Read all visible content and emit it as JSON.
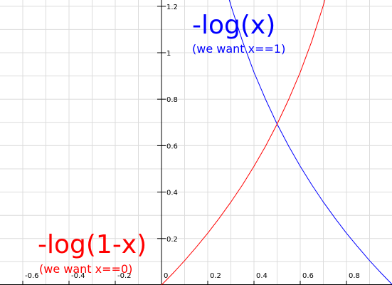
{
  "chart_data": {
    "type": "line",
    "xlim": [
      -0.7,
      1.0
    ],
    "ylim": [
      0,
      1.25
    ],
    "grid": true,
    "x_ticks": [
      -0.6,
      -0.4,
      -0.2,
      0,
      0.2,
      0.4,
      0.6,
      0.8
    ],
    "y_ticks": [
      0.2,
      0.4,
      0.6,
      0.8,
      1,
      1.2
    ],
    "x_tick_labels": [
      "-0.6",
      "-0.4",
      "-0.2",
      "0",
      "0.2",
      "0.4",
      "0.6",
      "0.8"
    ],
    "y_tick_labels": [
      "0.2",
      "0.4",
      "0.6",
      "0.8",
      "1",
      "1.2"
    ],
    "series": [
      {
        "name": "-log(x)",
        "color": "#0000ff",
        "x": [
          0.28,
          0.3,
          0.35,
          0.4,
          0.45,
          0.5,
          0.55,
          0.6,
          0.65,
          0.7,
          0.75,
          0.8,
          0.85,
          0.9,
          0.95,
          1.0
        ],
        "y": [
          1.273,
          1.204,
          1.05,
          0.916,
          0.799,
          0.693,
          0.598,
          0.511,
          0.431,
          0.357,
          0.288,
          0.223,
          0.163,
          0.105,
          0.051,
          0
        ]
      },
      {
        "name": "-log(1-x)",
        "color": "#ff0000",
        "x": [
          0,
          0.05,
          0.1,
          0.15,
          0.2,
          0.25,
          0.3,
          0.35,
          0.4,
          0.45,
          0.5,
          0.55,
          0.6,
          0.65,
          0.7,
          0.72
        ],
        "y": [
          0,
          0.051,
          0.105,
          0.163,
          0.223,
          0.288,
          0.357,
          0.431,
          0.511,
          0.598,
          0.693,
          0.799,
          0.916,
          1.05,
          1.204,
          1.273
        ]
      }
    ],
    "annotations": [
      {
        "key": "neglogx",
        "main": "-log(x)",
        "sub": "(we want x==1)",
        "color": "#0000ff"
      },
      {
        "key": "neglog1mx",
        "main": "-log(1-x)",
        "sub": "(we want x==0)",
        "color": "#ff0000"
      }
    ]
  }
}
